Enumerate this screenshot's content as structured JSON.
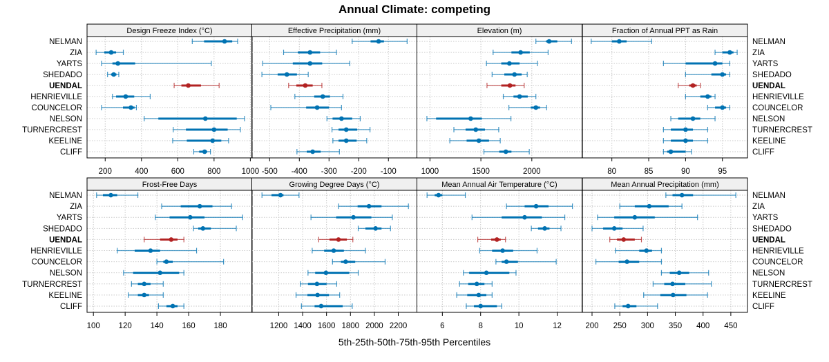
{
  "title": "Annual Climate: competing",
  "chart_data": {
    "type": "dotplot-percentiles",
    "title": "Annual Climate: competing",
    "xlabel": "5th-25th-50th-75th-95th Percentiles",
    "ylabel": "",
    "sites": [
      "NELMAN",
      "ZIA",
      "YARTS",
      "SHEDADO",
      "UENDAL",
      "HENRIEVILLE",
      "COUNCELOR",
      "NELSON",
      "TURNERCREST",
      "KEELINE",
      "CLIFF"
    ],
    "highlight_site": "UENDAL",
    "colors": {
      "default": "#0072B2",
      "highlight": "#B22222",
      "strip_bg": "#F0F0F0",
      "grid": "#C8C8C8"
    },
    "grid": true,
    "percentile_order": [
      "p5",
      "p25",
      "p50",
      "p75",
      "p95"
    ],
    "panels": [
      {
        "name": "Design Freeze Index (°C)",
        "xlim": [
          100,
          1010
        ],
        "ticks": [
          200,
          400,
          600,
          800,
          1000
        ],
        "values": [
          [
            680,
            745,
            858,
            900,
            930
          ],
          [
            150,
            195,
            233,
            260,
            300
          ],
          [
            180,
            240,
            270,
            365,
            785
          ],
          [
            213,
            232,
            247,
            262,
            275
          ],
          [
            580,
            620,
            658,
            728,
            828
          ],
          [
            240,
            260,
            313,
            360,
            448
          ],
          [
            180,
            298,
            342,
            362,
            372
          ],
          [
            415,
            493,
            752,
            925,
            968
          ],
          [
            575,
            645,
            800,
            875,
            945
          ],
          [
            572,
            650,
            792,
            840,
            880
          ],
          [
            688,
            718,
            748,
            762,
            780
          ]
        ]
      },
      {
        "name": "Effective Precipitation (mm)",
        "xlim": [
          -560,
          -4
        ],
        "ticks": [
          -500,
          -400,
          -300,
          -200,
          -100
        ],
        "values": [
          [
            -222,
            -160,
            -133,
            -115,
            -37
          ],
          [
            -453,
            -405,
            -364,
            -330,
            -275
          ],
          [
            -523,
            -422,
            -364,
            -323,
            -230
          ],
          [
            -526,
            -473,
            -442,
            -408,
            -370
          ],
          [
            -436,
            -410,
            -380,
            -355,
            -324
          ],
          [
            -415,
            -350,
            -321,
            -297,
            -253
          ],
          [
            -496,
            -377,
            -340,
            -300,
            -258
          ],
          [
            -307,
            -288,
            -258,
            -222,
            -195
          ],
          [
            -290,
            -268,
            -242,
            -205,
            -162
          ],
          [
            -287,
            -268,
            -242,
            -207,
            -173
          ],
          [
            -408,
            -375,
            -355,
            -328,
            -265
          ]
        ]
      },
      {
        "name": "Elevation (m)",
        "xlim": [
          872,
          2493
        ],
        "ticks": [
          1000,
          1500,
          2000
        ],
        "values": [
          [
            2040,
            2140,
            2170,
            2250,
            2390
          ],
          [
            1620,
            1800,
            1890,
            1980,
            2160
          ],
          [
            1555,
            1700,
            1780,
            1880,
            2055
          ],
          [
            1610,
            1730,
            1830,
            1900,
            1955
          ],
          [
            1560,
            1700,
            1785,
            1840,
            1925
          ],
          [
            1720,
            1820,
            1880,
            1960,
            2040
          ],
          [
            1775,
            1990,
            2040,
            2080,
            2145
          ],
          [
            970,
            1060,
            1400,
            1510,
            1795
          ],
          [
            1235,
            1350,
            1450,
            1540,
            1675
          ],
          [
            1195,
            1360,
            1480,
            1580,
            1690
          ],
          [
            1530,
            1680,
            1745,
            1800,
            1975
          ]
        ]
      },
      {
        "name": "Fraction of Annual PPT as Rain",
        "xlim": [
          76,
          98.4
        ],
        "ticks": [
          80,
          85,
          90,
          95
        ],
        "values": [
          [
            77.2,
            80,
            81,
            82,
            85.4
          ],
          [
            94,
            95,
            96,
            96.5,
            97
          ],
          [
            87,
            90,
            94,
            95,
            96
          ],
          [
            90,
            93.5,
            95,
            95.5,
            96
          ],
          [
            89,
            90.5,
            91,
            91.5,
            92
          ],
          [
            90,
            92,
            93,
            93.5,
            94
          ],
          [
            93,
            94,
            95,
            95.5,
            96
          ],
          [
            88,
            89,
            91,
            92,
            94
          ],
          [
            87,
            88,
            90,
            91,
            93
          ],
          [
            87,
            88,
            90,
            91,
            93
          ],
          [
            87,
            87.5,
            88,
            90,
            90.8
          ]
        ]
      },
      {
        "name": "Frost-Free Days",
        "xlim": [
          96,
          200
        ],
        "ticks": [
          100,
          120,
          140,
          160,
          180
        ],
        "values": [
          [
            102,
            106,
            111,
            115,
            128
          ],
          [
            143,
            155,
            167,
            175,
            187
          ],
          [
            139,
            148,
            161,
            170,
            194
          ],
          [
            163,
            166,
            169,
            174,
            190
          ],
          [
            132,
            142,
            149,
            153,
            157
          ],
          [
            115,
            126,
            136,
            142,
            165
          ],
          [
            140,
            144,
            146,
            150,
            182
          ],
          [
            119,
            125,
            142,
            154,
            157
          ],
          [
            124,
            128,
            132,
            136,
            144
          ],
          [
            122,
            128,
            132,
            135,
            144
          ],
          [
            141,
            146,
            150,
            153,
            157
          ]
        ]
      },
      {
        "name": "Growing Degree Days (°C)",
        "xlim": [
          975,
          2356
        ],
        "ticks": [
          1200,
          1400,
          1600,
          1800,
          2000,
          2200
        ],
        "values": [
          [
            1060,
            1140,
            1215,
            1240,
            1370
          ],
          [
            1700,
            1860,
            1955,
            2060,
            2285
          ],
          [
            1470,
            1680,
            1825,
            1975,
            2150
          ],
          [
            1865,
            1925,
            2010,
            2060,
            2135
          ],
          [
            1535,
            1625,
            1700,
            1770,
            1820
          ],
          [
            1480,
            1580,
            1660,
            1745,
            1925
          ],
          [
            1650,
            1720,
            1760,
            1840,
            2090
          ],
          [
            1445,
            1505,
            1595,
            1790,
            1865
          ],
          [
            1380,
            1445,
            1520,
            1600,
            1685
          ],
          [
            1345,
            1440,
            1525,
            1620,
            1710
          ],
          [
            1390,
            1500,
            1555,
            1735,
            1815
          ]
        ]
      },
      {
        "name": "Mean Annual Air Temperature (°C)",
        "xlim": [
          4.67,
          13.3
        ],
        "ticks": [
          6,
          8,
          10,
          12
        ],
        "values": [
          [
            5.2,
            5.6,
            5.8,
            6.0,
            7.2
          ],
          [
            9.35,
            10.3,
            10.9,
            11.55,
            12.8
          ],
          [
            7.55,
            9.1,
            10.3,
            11.2,
            12.4
          ],
          [
            10.65,
            11.0,
            11.35,
            11.6,
            12.2
          ],
          [
            7.85,
            8.55,
            8.85,
            9.05,
            9.3
          ],
          [
            7.95,
            8.6,
            9.15,
            9.7,
            10.95
          ],
          [
            8.8,
            9.1,
            9.35,
            9.95,
            11.95
          ],
          [
            7.1,
            7.4,
            8.3,
            9.5,
            9.85
          ],
          [
            6.9,
            7.35,
            7.8,
            8.2,
            8.6
          ],
          [
            6.75,
            7.3,
            7.9,
            8.3,
            8.6
          ],
          [
            7.25,
            7.65,
            8.0,
            8.85,
            9.1
          ]
        ]
      },
      {
        "name": "Mean Annual Precipitation (mm)",
        "xlim": [
          182.6,
          480
        ],
        "ticks": [
          200,
          250,
          300,
          350,
          400,
          450
        ],
        "values": [
          [
            333,
            345,
            362,
            382,
            459
          ],
          [
            250,
            277,
            303,
            338,
            362
          ],
          [
            210,
            240,
            277,
            313,
            390
          ],
          [
            200,
            220,
            240,
            255,
            292
          ],
          [
            232,
            245,
            257,
            277,
            289
          ],
          [
            242,
            285,
            298,
            308,
            325
          ],
          [
            207,
            248,
            263,
            285,
            325
          ],
          [
            325,
            340,
            357,
            375,
            410
          ],
          [
            310,
            330,
            345,
            368,
            415
          ],
          [
            293,
            323,
            346,
            370,
            408
          ],
          [
            241,
            255,
            265,
            280,
            318
          ]
        ]
      }
    ]
  }
}
